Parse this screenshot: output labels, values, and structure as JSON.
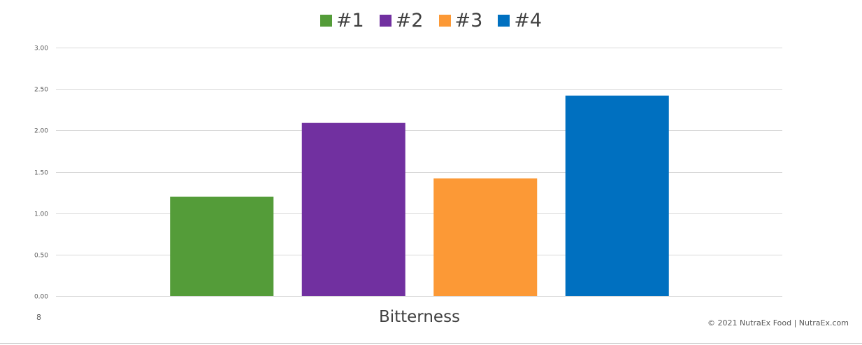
{
  "chart_data": {
    "type": "bar",
    "title": "",
    "xlabel": "Bitterness",
    "ylabel": "",
    "categories": [
      "Bitterness"
    ],
    "series": [
      {
        "name": "#1",
        "values": [
          1.2
        ],
        "color": "#549C39"
      },
      {
        "name": "#2",
        "values": [
          2.09
        ],
        "color": "#7130A0"
      },
      {
        "name": "#3",
        "values": [
          1.42
        ],
        "color": "#FC9936"
      },
      {
        "name": "#4",
        "values": [
          2.42
        ],
        "color": "#0070C0"
      }
    ],
    "ylim": [
      0,
      3
    ],
    "y_ticks": [
      "0.00",
      "0.50",
      "1.00",
      "1.50",
      "2.00",
      "2.50",
      "3.00"
    ],
    "grid": true,
    "legend_position": "top-center"
  },
  "page_number": "8",
  "footer": "© 2021 NutraEx Food |  NutraEx.com"
}
